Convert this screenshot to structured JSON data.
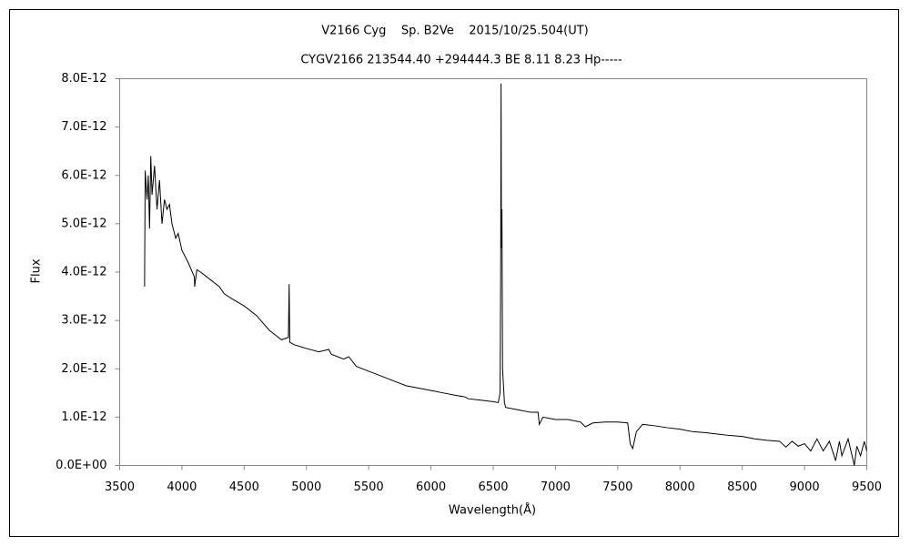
{
  "chart_data": {
    "type": "line",
    "title": "V2166 Cyg    Sp. B2Ve    2015/10/25.504(UT)",
    "subtitle": "CYGV2166 213544.40 +294444.3 BE 8.11 8.23 Hp-----",
    "xlabel": "Wavelength(Å)",
    "ylabel": "Flux",
    "xlim": [
      3500,
      9500
    ],
    "xticks": [
      3500,
      4000,
      4500,
      5000,
      5500,
      6000,
      6500,
      7000,
      7500,
      8000,
      8500,
      9000,
      9500
    ],
    "ylim": [
      0,
      8e-12
    ],
    "yticks": [
      {
        "value": 0,
        "label": "0.0E+00"
      },
      {
        "value": 1e-12,
        "label": "1.0E-12"
      },
      {
        "value": 2e-12,
        "label": "2.0E-12"
      },
      {
        "value": 3e-12,
        "label": "3.0E-12"
      },
      {
        "value": 4e-12,
        "label": "4.0E-12"
      },
      {
        "value": 5e-12,
        "label": "5.0E-12"
      },
      {
        "value": 6e-12,
        "label": "6.0E-12"
      },
      {
        "value": 7e-12,
        "label": "7.0E-12"
      },
      {
        "value": 8e-12,
        "label": "8.0E-12"
      }
    ],
    "grid": false,
    "color": "#000000",
    "x": [
      3700,
      3705,
      3720,
      3730,
      3740,
      3750,
      3760,
      3780,
      3800,
      3820,
      3840,
      3860,
      3880,
      3900,
      3920,
      3950,
      3970,
      4000,
      4050,
      4100,
      4102,
      4120,
      4150,
      4200,
      4300,
      4340,
      4400,
      4500,
      4600,
      4700,
      4800,
      4855,
      4861,
      4866,
      4900,
      5000,
      5100,
      5180,
      5200,
      5300,
      5340,
      5400,
      5500,
      5600,
      5700,
      5800,
      5900,
      6000,
      6100,
      6200,
      6270,
      6300,
      6400,
      6500,
      6540,
      6555,
      6560,
      6563,
      6566,
      6570,
      6575,
      6590,
      6600,
      6700,
      6800,
      6860,
      6870,
      6900,
      7000,
      7100,
      7200,
      7240,
      7300,
      7400,
      7500,
      7580,
      7600,
      7620,
      7650,
      7700,
      7800,
      7900,
      8000,
      8100,
      8200,
      8300,
      8400,
      8500,
      8600,
      8700,
      8800,
      8850,
      8900,
      8950,
      9000,
      9050,
      9100,
      9150,
      9200,
      9250,
      9280,
      9300,
      9350,
      9400,
      9420,
      9450,
      9480,
      9500
    ],
    "values": [
      3.7e-12,
      6.1e-12,
      5.5e-12,
      6e-12,
      4.9e-12,
      6.4e-12,
      5.6e-12,
      6.2e-12,
      5.3e-12,
      5.9e-12,
      5e-12,
      5.5e-12,
      5.3e-12,
      5.4e-12,
      5e-12,
      4.7e-12,
      4.8e-12,
      4.45e-12,
      4.2e-12,
      3.9e-12,
      3.7e-12,
      4.05e-12,
      4e-12,
      3.9e-12,
      3.7e-12,
      3.55e-12,
      3.45e-12,
      3.3e-12,
      3.1e-12,
      2.8e-12,
      2.6e-12,
      2.65e-12,
      3.75e-12,
      2.55e-12,
      2.5e-12,
      2.42e-12,
      2.35e-12,
      2.4e-12,
      2.3e-12,
      2.2e-12,
      2.25e-12,
      2.05e-12,
      1.95e-12,
      1.85e-12,
      1.75e-12,
      1.65e-12,
      1.6e-12,
      1.55e-12,
      1.5e-12,
      1.45e-12,
      1.42e-12,
      1.38e-12,
      1.35e-12,
      1.32e-12,
      1.3e-12,
      1.5e-12,
      4e-12,
      7.9e-12,
      4.5e-12,
      5.3e-12,
      2e-12,
      1.3e-12,
      1.2e-12,
      1.15e-12,
      1.1e-12,
      1.1e-12,
      8.5e-13,
      1e-12,
      9.5e-13,
      9.5e-13,
      9e-13,
      8e-13,
      8.8e-13,
      9e-13,
      9e-13,
      8.8e-13,
      4.5e-13,
      3.5e-13,
      7e-13,
      8.5e-13,
      8.2e-13,
      7.8e-13,
      7.5e-13,
      7e-13,
      6.8e-13,
      6.5e-13,
      6.2e-13,
      6e-13,
      5.5e-13,
      5.2e-13,
      5e-13,
      3.8e-13,
      5e-13,
      4e-13,
      4.5e-13,
      3e-13,
      5.5e-13,
      3e-13,
      5e-13,
      1e-13,
      5e-13,
      2e-13,
      5.5e-13,
      0.0,
      4e-13,
      2e-13,
      5e-13,
      3e-13
    ]
  }
}
